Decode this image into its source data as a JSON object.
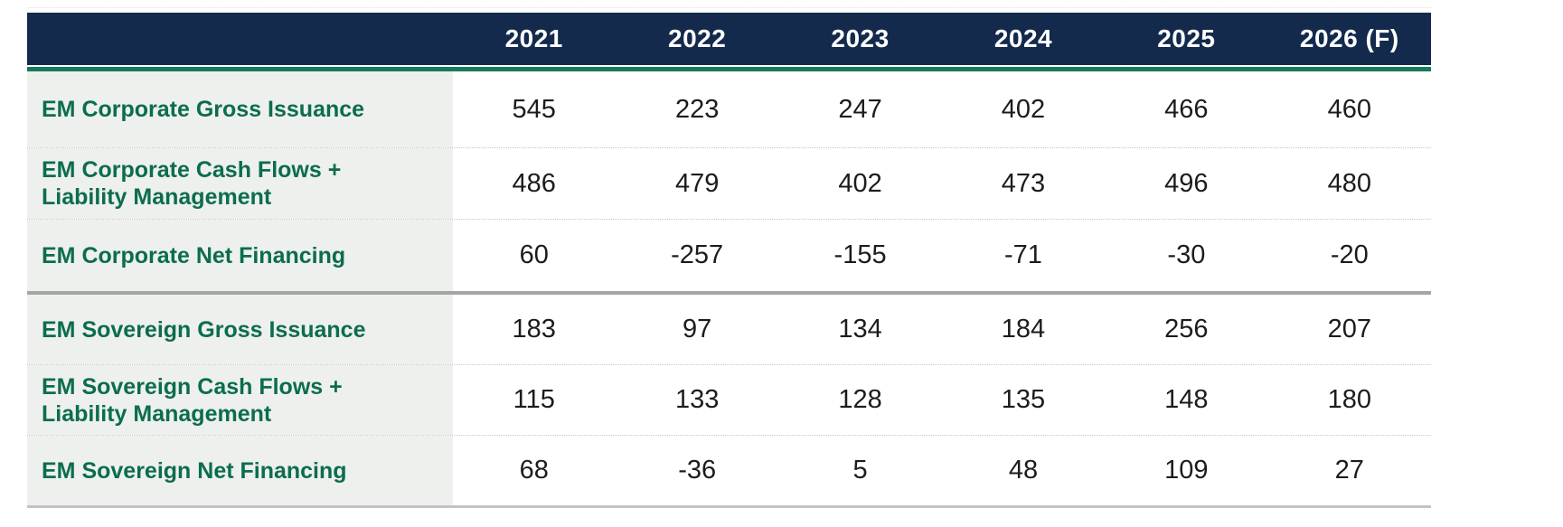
{
  "colors": {
    "page_bg": "#ffffff",
    "header_bg": "#132a4d",
    "header_text": "#ffffff",
    "green_rule": "#177a58",
    "accent_green": "#0b6d4e",
    "label_column_bg": "#eef0ee",
    "value_text": "#1c1c1c",
    "row_separator": "#c6c6c6",
    "section_divider": "#a5a5a5",
    "table_bottom_border": "#c2c2c2"
  },
  "chart_data": {
    "type": "table",
    "columns": [
      "2021",
      "2022",
      "2023",
      "2024",
      "2025",
      "2026 (F)"
    ],
    "rows": [
      {
        "label": "EM Corporate Gross Issuance",
        "label_lines": [
          "EM Corporate Gross Issuance"
        ],
        "values": [
          545,
          223,
          247,
          402,
          466,
          460
        ]
      },
      {
        "label": "EM Corporate Cash Flows + Liability Management",
        "label_lines": [
          "EM Corporate Cash Flows +",
          "Liability Management"
        ],
        "values": [
          486,
          479,
          402,
          473,
          496,
          480
        ]
      },
      {
        "label": "EM Corporate Net Financing",
        "label_lines": [
          "EM Corporate Net Financing"
        ],
        "values": [
          60,
          -257,
          -155,
          -71,
          -30,
          -20
        ]
      },
      {
        "label": "EM Sovereign Gross Issuance",
        "label_lines": [
          "EM Sovereign Gross Issuance"
        ],
        "values": [
          183,
          97,
          134,
          184,
          256,
          207
        ]
      },
      {
        "label": "EM Sovereign Cash Flows + Liability Management",
        "label_lines": [
          "EM Sovereign Cash Flows +",
          "Liability Management"
        ],
        "values": [
          115,
          133,
          128,
          135,
          148,
          180
        ]
      },
      {
        "label": "EM Sovereign Net Financing",
        "label_lines": [
          "EM Sovereign Net Financing"
        ],
        "values": [
          68,
          -36,
          5,
          48,
          109,
          27
        ]
      }
    ],
    "groups": [
      "EM Corporate",
      "EM Sovereign"
    ],
    "layout": {
      "section_divider_after_row": 3,
      "header_style": "navy-bar-with-green-underline"
    }
  }
}
